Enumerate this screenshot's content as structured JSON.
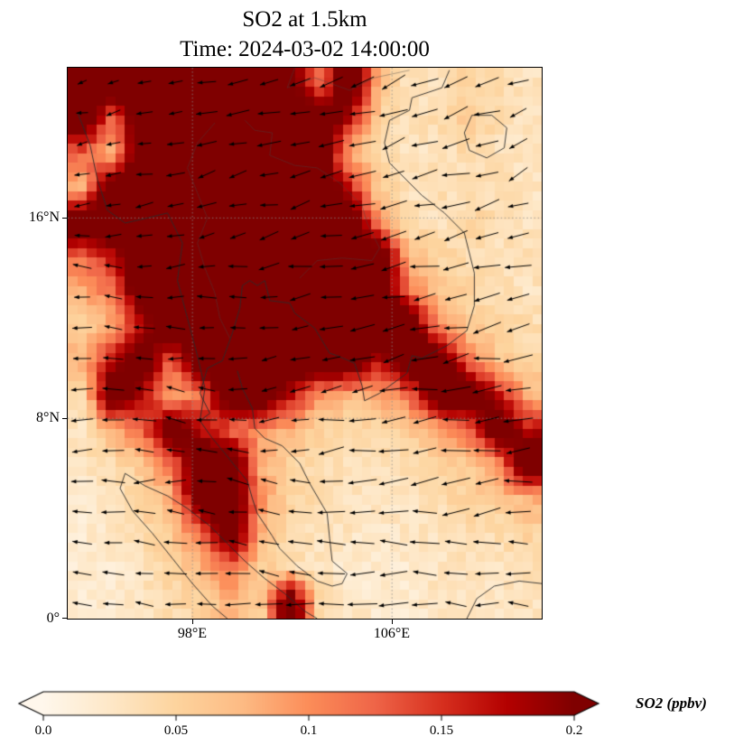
{
  "chart_data": {
    "type": "heatmap",
    "title": "SO2 at 1.5km",
    "time_label": "Time: 2024-03-02 14:00:00",
    "variable": "SO2",
    "level": "1.5km",
    "overlays": [
      "wind-quiver",
      "coastlines",
      "country-borders",
      "dotted-graticule"
    ],
    "xlim": [
      93,
      112
    ],
    "ylim": [
      0,
      22
    ],
    "x_ticks": [
      {
        "value": 98,
        "label": "98°E"
      },
      {
        "value": 106,
        "label": "106°E"
      }
    ],
    "y_ticks": [
      {
        "value": 0,
        "label": "0°"
      },
      {
        "value": 8,
        "label": "8°N"
      },
      {
        "value": 16,
        "label": "16°N"
      }
    ],
    "colormap": {
      "name": "OrRd",
      "stops": [
        [
          0.0,
          "#fff7ec"
        ],
        [
          0.125,
          "#fee8c8"
        ],
        [
          0.25,
          "#fdd49e"
        ],
        [
          0.375,
          "#fdbb84"
        ],
        [
          0.5,
          "#fc8d59"
        ],
        [
          0.625,
          "#ef6548"
        ],
        [
          0.75,
          "#d7301f"
        ],
        [
          0.875,
          "#b30000"
        ],
        [
          1.0,
          "#7f0000"
        ]
      ]
    },
    "colorbar": {
      "vmin": 0.0,
      "vmax": 0.2,
      "extend": "both",
      "ticks": [
        "0.0",
        "0.05",
        "0.1",
        "0.15",
        "0.2"
      ],
      "label": "SO2 (ppbv)"
    },
    "so2_grid": {
      "comment_free": true,
      "cols": 16,
      "rows": 16,
      "values": [
        [
          0.25,
          0.25,
          0.25,
          0.25,
          0.25,
          0.25,
          0.25,
          0.22,
          0.12,
          0.25,
          0.08,
          0.03,
          0.03,
          0.05,
          0.04,
          0.03
        ],
        [
          0.25,
          0.12,
          0.25,
          0.25,
          0.25,
          0.25,
          0.25,
          0.25,
          0.25,
          0.17,
          0.05,
          0.03,
          0.04,
          0.06,
          0.04,
          0.03
        ],
        [
          0.12,
          0.08,
          0.25,
          0.25,
          0.25,
          0.25,
          0.25,
          0.25,
          0.25,
          0.08,
          0.04,
          0.03,
          0.03,
          0.04,
          0.03,
          0.03
        ],
        [
          0.08,
          0.25,
          0.25,
          0.25,
          0.25,
          0.25,
          0.25,
          0.25,
          0.25,
          0.17,
          0.06,
          0.03,
          0.04,
          0.03,
          0.04,
          0.03
        ],
        [
          0.25,
          0.25,
          0.25,
          0.25,
          0.25,
          0.25,
          0.25,
          0.25,
          0.25,
          0.25,
          0.1,
          0.04,
          0.03,
          0.05,
          0.04,
          0.03
        ],
        [
          0.12,
          0.17,
          0.25,
          0.25,
          0.25,
          0.25,
          0.25,
          0.25,
          0.25,
          0.25,
          0.25,
          0.08,
          0.05,
          0.04,
          0.03,
          0.04
        ],
        [
          0.08,
          0.12,
          0.25,
          0.25,
          0.25,
          0.25,
          0.25,
          0.25,
          0.25,
          0.25,
          0.25,
          0.12,
          0.06,
          0.05,
          0.04,
          0.03
        ],
        [
          0.05,
          0.08,
          0.17,
          0.25,
          0.25,
          0.25,
          0.25,
          0.25,
          0.25,
          0.25,
          0.25,
          0.25,
          0.1,
          0.06,
          0.05,
          0.04
        ],
        [
          0.08,
          0.17,
          0.25,
          0.12,
          0.25,
          0.25,
          0.25,
          0.25,
          0.25,
          0.25,
          0.17,
          0.25,
          0.25,
          0.12,
          0.06,
          0.05
        ],
        [
          0.04,
          0.25,
          0.17,
          0.08,
          0.12,
          0.25,
          0.25,
          0.17,
          0.1,
          0.08,
          0.08,
          0.12,
          0.25,
          0.25,
          0.17,
          0.08
        ],
        [
          0.03,
          0.08,
          0.12,
          0.25,
          0.17,
          0.12,
          0.1,
          0.08,
          0.05,
          0.04,
          0.05,
          0.06,
          0.08,
          0.12,
          0.25,
          0.17
        ],
        [
          0.03,
          0.04,
          0.06,
          0.12,
          0.25,
          0.25,
          0.08,
          0.05,
          0.04,
          0.03,
          0.03,
          0.04,
          0.05,
          0.06,
          0.1,
          0.25
        ],
        [
          0.02,
          0.03,
          0.05,
          0.08,
          0.25,
          0.25,
          0.1,
          0.05,
          0.04,
          0.03,
          0.03,
          0.03,
          0.04,
          0.05,
          0.06,
          0.08
        ],
        [
          0.02,
          0.03,
          0.04,
          0.06,
          0.12,
          0.25,
          0.08,
          0.04,
          0.03,
          0.03,
          0.02,
          0.03,
          0.03,
          0.04,
          0.04,
          0.05
        ],
        [
          0.02,
          0.02,
          0.03,
          0.05,
          0.08,
          0.12,
          0.06,
          0.04,
          0.03,
          0.02,
          0.02,
          0.02,
          0.03,
          0.03,
          0.03,
          0.04
        ],
        [
          0.02,
          0.02,
          0.03,
          0.04,
          0.05,
          0.08,
          0.05,
          0.25,
          0.04,
          0.03,
          0.02,
          0.02,
          0.03,
          0.03,
          0.03,
          0.03
        ]
      ]
    },
    "wind_grid": {
      "cols": 8,
      "rows": 8,
      "u": [
        [
          -0.5,
          -0.6,
          -0.8,
          -0.9,
          -1.0,
          -1.1,
          -1.0,
          -0.9
        ],
        [
          -0.6,
          -0.7,
          -0.8,
          -0.9,
          -1.0,
          -1.0,
          -1.0,
          -0.9
        ],
        [
          -0.7,
          -0.7,
          -0.8,
          -0.8,
          -0.9,
          -1.0,
          -1.1,
          -1.0
        ],
        [
          -0.8,
          -0.8,
          -0.7,
          -0.8,
          -0.9,
          -1.0,
          -1.1,
          -1.1
        ],
        [
          -0.9,
          -0.8,
          -0.7,
          -0.7,
          -0.9,
          -1.1,
          -1.2,
          -1.2
        ],
        [
          -1.0,
          -0.9,
          -0.8,
          -0.8,
          -1.0,
          -1.2,
          -1.2,
          -1.1
        ],
        [
          -0.9,
          -0.9,
          -0.8,
          -0.9,
          -1.1,
          -1.2,
          -1.1,
          -1.0
        ],
        [
          -0.8,
          -0.8,
          -0.9,
          -1.0,
          -1.1,
          -1.1,
          -1.0,
          -0.9
        ]
      ],
      "v": [
        [
          -0.1,
          -0.2,
          -0.2,
          -0.3,
          -0.3,
          -0.4,
          -0.4,
          -0.3
        ],
        [
          -0.1,
          -0.1,
          -0.2,
          -0.2,
          -0.3,
          -0.3,
          -0.3,
          -0.4
        ],
        [
          0.0,
          -0.1,
          -0.1,
          -0.2,
          -0.2,
          -0.2,
          -0.3,
          -0.3
        ],
        [
          0.1,
          0.0,
          -0.1,
          -0.1,
          -0.2,
          -0.2,
          -0.2,
          -0.3
        ],
        [
          0.1,
          0.1,
          0.0,
          -0.1,
          -0.1,
          -0.2,
          -0.2,
          -0.2
        ],
        [
          0.0,
          0.1,
          0.1,
          0.0,
          -0.1,
          -0.1,
          -0.1,
          -0.1
        ],
        [
          0.0,
          0.0,
          0.1,
          0.1,
          0.0,
          0.0,
          -0.1,
          -0.1
        ],
        [
          0.1,
          0.1,
          0.1,
          0.1,
          0.1,
          0.0,
          0.0,
          0.1
        ]
      ]
    },
    "coastlines": [
      [
        [
          108.3,
          21.9
        ],
        [
          108.0,
          21.2
        ],
        [
          106.8,
          20.8
        ],
        [
          106.7,
          20.3
        ],
        [
          105.9,
          19.9
        ],
        [
          105.7,
          19.0
        ],
        [
          105.9,
          18.2
        ],
        [
          106.5,
          17.6
        ],
        [
          107.2,
          16.9
        ],
        [
          108.1,
          16.2
        ],
        [
          108.9,
          15.4
        ],
        [
          109.3,
          13.8
        ],
        [
          109.3,
          12.5
        ],
        [
          109.0,
          11.5
        ],
        [
          108.2,
          10.9
        ],
        [
          107.2,
          10.4
        ],
        [
          106.8,
          10.5
        ],
        [
          106.6,
          9.8
        ],
        [
          105.5,
          9.0
        ],
        [
          104.9,
          8.7
        ],
        [
          104.8,
          9.3
        ],
        [
          104.5,
          10.2
        ],
        [
          103.8,
          10.5
        ],
        [
          103.5,
          10.6
        ],
        [
          102.9,
          11.6
        ],
        [
          102.1,
          12.2
        ],
        [
          101.9,
          12.6
        ],
        [
          101.1,
          12.7
        ],
        [
          100.9,
          13.5
        ],
        [
          100.6,
          13.3
        ],
        [
          100.3,
          13.5
        ],
        [
          100.0,
          13.3
        ],
        [
          99.9,
          12.4
        ],
        [
          99.6,
          11.4
        ],
        [
          99.2,
          10.3
        ],
        [
          98.6,
          10.0
        ],
        [
          98.3,
          9.0
        ],
        [
          98.7,
          8.2
        ],
        [
          98.3,
          7.9
        ]
      ],
      [
        [
          98.3,
          7.9
        ],
        [
          98.8,
          7.2
        ],
        [
          99.3,
          6.6
        ],
        [
          99.7,
          6.1
        ],
        [
          100.2,
          5.5
        ],
        [
          100.4,
          4.8
        ],
        [
          100.6,
          4.2
        ],
        [
          101.2,
          3.3
        ],
        [
          101.5,
          2.8
        ],
        [
          102.2,
          2.1
        ],
        [
          103.0,
          1.5
        ],
        [
          103.6,
          1.3
        ],
        [
          104.0,
          1.4
        ]
      ],
      [
        [
          104.0,
          1.4
        ],
        [
          104.2,
          1.8
        ],
        [
          103.6,
          2.3
        ],
        [
          103.5,
          3.2
        ],
        [
          103.4,
          4.2
        ],
        [
          102.7,
          5.4
        ],
        [
          102.3,
          6.2
        ],
        [
          101.6,
          6.9
        ],
        [
          100.9,
          7.2
        ],
        [
          100.5,
          7.6
        ],
        [
          100.4,
          8.4
        ],
        [
          100.0,
          9.2
        ],
        [
          99.8,
          9.9
        ]
      ],
      [
        [
          95.3,
          5.8
        ],
        [
          96.1,
          5.3
        ],
        [
          97.0,
          4.9
        ],
        [
          97.8,
          4.4
        ],
        [
          98.7,
          3.7
        ],
        [
          99.4,
          3.0
        ],
        [
          100.1,
          2.3
        ],
        [
          100.9,
          1.6
        ],
        [
          101.7,
          1.0
        ],
        [
          102.5,
          0.3
        ],
        [
          103.0,
          0.0
        ]
      ],
      [
        [
          95.3,
          5.8
        ],
        [
          95.1,
          5.2
        ],
        [
          95.6,
          4.3
        ],
        [
          96.4,
          3.4
        ],
        [
          97.2,
          2.4
        ],
        [
          98.0,
          1.4
        ],
        [
          98.8,
          0.5
        ],
        [
          99.4,
          0.0
        ]
      ],
      [
        [
          109.2,
          20.1
        ],
        [
          110.0,
          20.1
        ],
        [
          110.6,
          19.6
        ],
        [
          110.5,
          18.8
        ],
        [
          109.8,
          18.4
        ],
        [
          109.1,
          18.7
        ],
        [
          108.9,
          19.4
        ],
        [
          109.2,
          20.1
        ]
      ],
      [
        [
          109.0,
          0.0
        ],
        [
          109.4,
          0.8
        ],
        [
          110.1,
          1.3
        ],
        [
          111.1,
          1.5
        ],
        [
          112.0,
          1.4
        ]
      ],
      [
        [
          98.3,
          7.9
        ],
        [
          98.5,
          9.2
        ],
        [
          98.2,
          10.5
        ],
        [
          97.8,
          12.0
        ],
        [
          97.4,
          13.5
        ],
        [
          97.6,
          15.0
        ],
        [
          97.0,
          16.2
        ],
        [
          96.2,
          16.0
        ],
        [
          95.3,
          15.8
        ],
        [
          94.6,
          16.3
        ],
        [
          94.2,
          17.5
        ],
        [
          93.9,
          18.9
        ],
        [
          93.4,
          20.2
        ]
      ]
    ],
    "borders": [
      [
        [
          98.9,
          19.8
        ],
        [
          98.2,
          19.0
        ],
        [
          97.8,
          18.0
        ],
        [
          98.2,
          17.0
        ],
        [
          98.6,
          16.0
        ],
        [
          98.2,
          15.0
        ],
        [
          98.5,
          14.0
        ],
        [
          98.9,
          13.0
        ],
        [
          99.1,
          12.0
        ],
        [
          99.5,
          11.2
        ]
      ],
      [
        [
          100.1,
          19.9
        ],
        [
          100.5,
          19.5
        ],
        [
          101.2,
          19.4
        ],
        [
          101.1,
          18.5
        ],
        [
          102.1,
          18.1
        ],
        [
          103.0,
          18.0
        ],
        [
          103.9,
          17.4
        ],
        [
          104.8,
          16.5
        ],
        [
          105.0,
          15.8
        ],
        [
          105.5,
          14.8
        ],
        [
          105.2,
          14.3
        ],
        [
          104.0,
          14.4
        ],
        [
          103.0,
          14.3
        ],
        [
          102.3,
          13.6
        ]
      ],
      [
        [
          102.1,
          22.0
        ],
        [
          101.8,
          21.2
        ],
        [
          102.9,
          21.6
        ],
        [
          104.3,
          21.1
        ],
        [
          105.3,
          21.6
        ],
        [
          106.7,
          21.9
        ]
      ]
    ]
  }
}
